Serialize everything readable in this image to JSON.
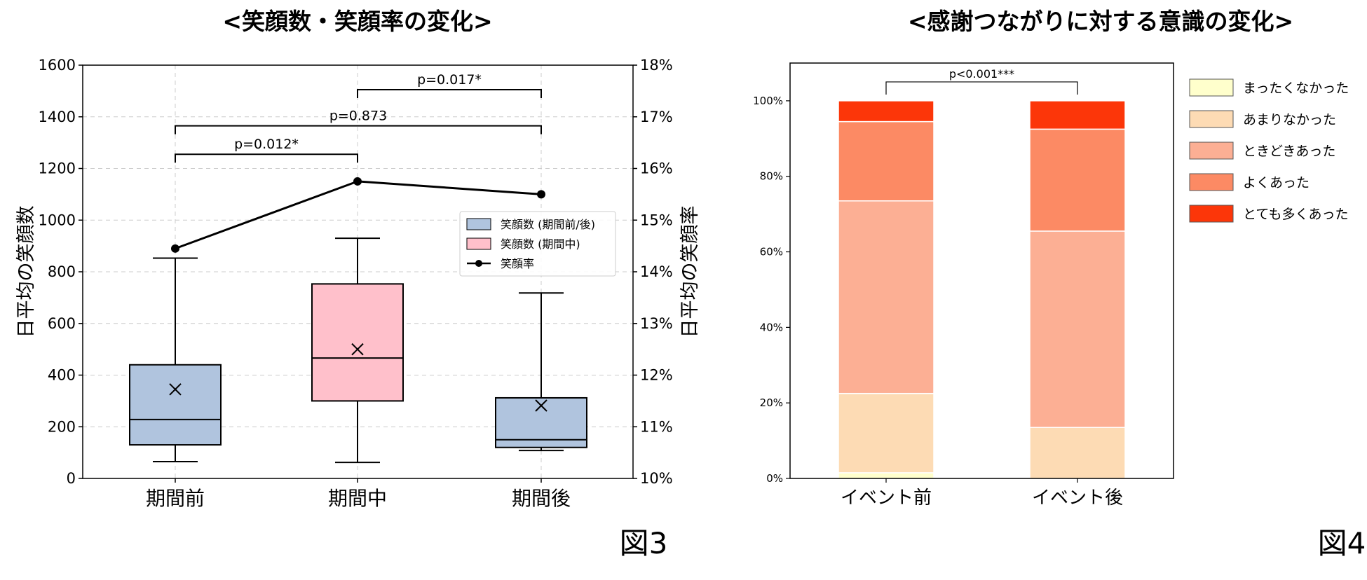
{
  "chart_data": [
    {
      "type": "boxplot",
      "title": "<笑顔数・笑顔率の変化>",
      "ylabel": "日平均の笑顔数",
      "ylabel_right": "日平均の笑顔率",
      "categories": [
        "期間前",
        "期間中",
        "期間後"
      ],
      "ylim": [
        0,
        1600
      ],
      "yticks": [
        "0",
        "200",
        "400",
        "600",
        "800",
        "1000",
        "1200",
        "1400",
        "1600"
      ],
      "ylim_right": [
        10,
        18
      ],
      "yticks_right": [
        "10%",
        "11%",
        "12%",
        "13%",
        "14%",
        "15%",
        "16%",
        "17%",
        "18%"
      ],
      "grid": true,
      "boxes": [
        {
          "min": 65,
          "q1": 130,
          "median": 228,
          "q3": 440,
          "max": 853,
          "mean": 345,
          "color": "#b0c4de"
        },
        {
          "min": 62,
          "q1": 300,
          "median": 466,
          "q3": 753,
          "max": 930,
          "mean": 500,
          "color": "#ffc0cb"
        },
        {
          "min": 108,
          "q1": 120,
          "median": 150,
          "q3": 312,
          "max": 718,
          "mean": 282,
          "color": "#b0c4de"
        }
      ],
      "line_series": {
        "name": "笑顔率",
        "values": [
          14.45,
          15.75,
          15.5
        ]
      },
      "legend": {
        "position": "right",
        "entries": [
          {
            "label": "笑顔数 (期間前/後)",
            "color": "#b0c4de"
          },
          {
            "label": "笑顔数 (期間中)",
            "color": "#ffc0cb"
          },
          {
            "label": "笑顔率",
            "marker": "line-dot"
          }
        ]
      },
      "annotations": [
        {
          "text": "p=0.012*",
          "from": 0,
          "to": 1,
          "y": 1255
        },
        {
          "text": "p=0.873",
          "from": 0,
          "to": 2,
          "y": 1365
        },
        {
          "text": "p=0.017*",
          "from": 1,
          "to": 2,
          "y": 1505
        }
      ],
      "figure_label": "図3"
    },
    {
      "type": "bar",
      "stacked": true,
      "title": "<感謝つながりに対する意識の変化>",
      "categories": [
        "イベント前",
        "イベント後"
      ],
      "ylim": [
        0,
        110
      ],
      "yticks": [
        "0%",
        "20%",
        "40%",
        "60%",
        "80%",
        "100%"
      ],
      "series": [
        {
          "name": "まったくなかった",
          "color": "#ffffcc",
          "values": [
            1.5,
            0
          ]
        },
        {
          "name": "あまりなかった",
          "color": "#fddbb4",
          "values": [
            21,
            13.5
          ]
        },
        {
          "name": "ときどきあった",
          "color": "#fcaf94",
          "values": [
            51,
            52
          ]
        },
        {
          "name": "よくあった",
          "color": "#fc8a64",
          "values": [
            21,
            27
          ]
        },
        {
          "name": "とても多くあった",
          "color": "#fc3609",
          "values": [
            5.5,
            7.5
          ]
        }
      ],
      "legend": {
        "position": "right"
      },
      "annotations": [
        {
          "text": "p<0.001***",
          "from": 0,
          "to": 1,
          "y": 105
        }
      ],
      "figure_label": "図4"
    }
  ]
}
